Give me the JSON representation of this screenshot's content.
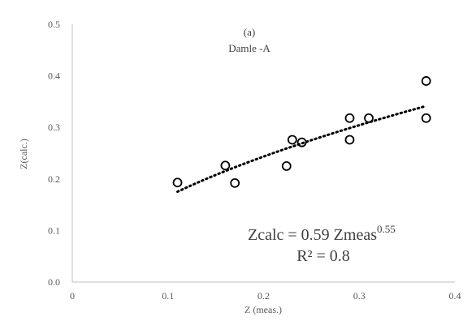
{
  "chart_data": {
    "type": "scatter",
    "annotation_panel": "(a)",
    "annotation_label": "Damle -A",
    "xlabel": "Z (meas.)",
    "ylabel": "Z(calc.)",
    "xlim": [
      0,
      0.4
    ],
    "ylim": [
      0.0,
      0.5
    ],
    "x_ticks": [
      "0",
      "0.1",
      "0.2",
      "0.3",
      "0.4"
    ],
    "y_ticks": [
      "0.0",
      "0.1",
      "0.2",
      "0.3",
      "0.4",
      "0.5"
    ],
    "x_tick_values": [
      0,
      0.1,
      0.2,
      0.3,
      0.4
    ],
    "y_tick_values": [
      0.0,
      0.1,
      0.2,
      0.3,
      0.4,
      0.5
    ],
    "grid": false,
    "points": [
      {
        "x": 0.11,
        "y": 0.193
      },
      {
        "x": 0.16,
        "y": 0.226
      },
      {
        "x": 0.17,
        "y": 0.192
      },
      {
        "x": 0.224,
        "y": 0.225
      },
      {
        "x": 0.23,
        "y": 0.276
      },
      {
        "x": 0.24,
        "y": 0.271
      },
      {
        "x": 0.29,
        "y": 0.276
      },
      {
        "x": 0.29,
        "y": 0.318
      },
      {
        "x": 0.31,
        "y": 0.318
      },
      {
        "x": 0.37,
        "y": 0.39
      },
      {
        "x": 0.37,
        "y": 0.318
      }
    ],
    "trendline": {
      "style": "dotted",
      "coef": 0.59,
      "exponent": 0.55,
      "x_range": [
        0.11,
        0.37
      ],
      "equation_prefix": "Zcalc = 0.59 Zmeas",
      "equation_exponent": "0.55",
      "r2_text": "R² = 0.8"
    }
  }
}
